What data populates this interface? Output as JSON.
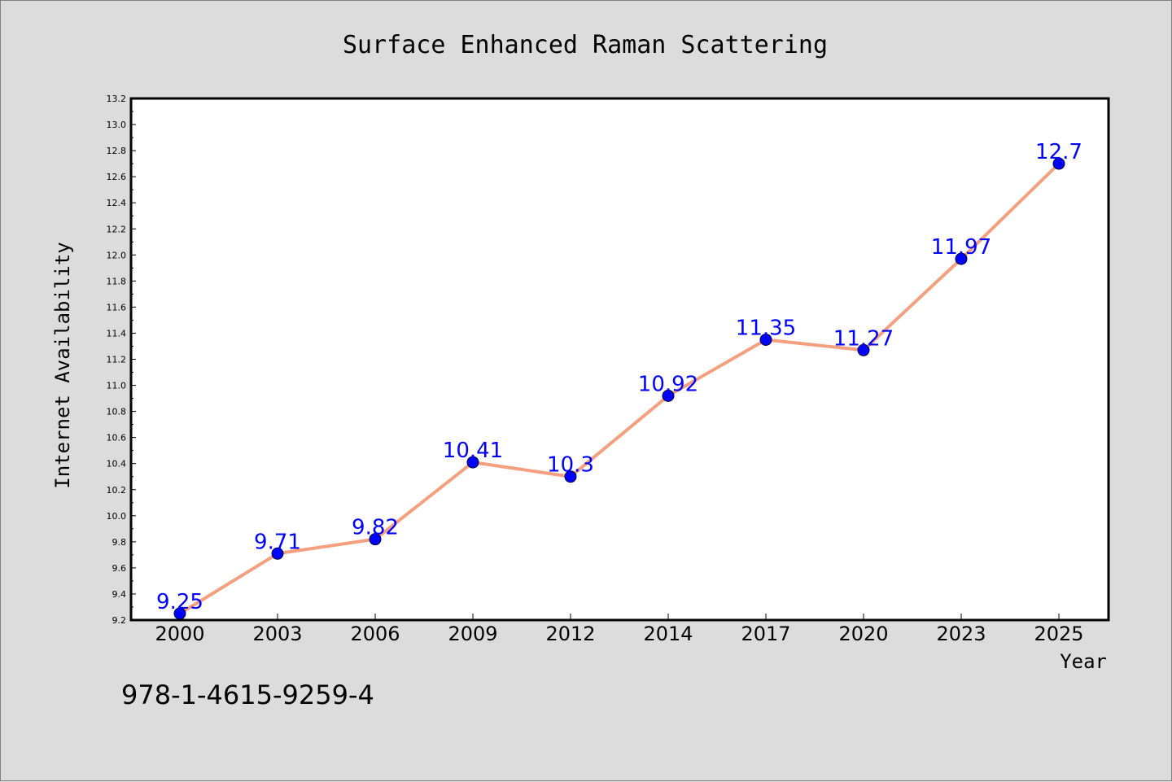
{
  "chart_data": {
    "type": "line",
    "title": "Surface Enhanced Raman Scattering",
    "xlabel": "Year",
    "ylabel": "Internet Availability",
    "categories": [
      "2000",
      "2003",
      "2006",
      "2009",
      "2012",
      "2014",
      "2017",
      "2020",
      "2023",
      "2025"
    ],
    "series": [
      {
        "values": [
          9.25,
          9.71,
          9.82,
          10.41,
          10.3,
          10.92,
          11.35,
          11.27,
          11.97,
          12.7
        ],
        "labels": [
          "9.25",
          "9.71",
          "9.82",
          "10.41",
          "10.3",
          "10.92",
          "11.35",
          "11.27",
          "11.97",
          "12.7"
        ],
        "line_color": "#f4a07e",
        "marker_color": "#0000ff"
      }
    ],
    "ylim": [
      9.2,
      13.2
    ],
    "yticks": [
      "9.2",
      "9.4",
      "9.6",
      "9.8",
      "10.0",
      "10.2",
      "10.4",
      "10.6",
      "10.8",
      "11.0",
      "11.2",
      "11.4",
      "11.6",
      "11.8",
      "12.0",
      "12.2",
      "12.4",
      "12.6",
      "12.8",
      "13.0",
      "13.2"
    ],
    "grid": false,
    "legend": "none",
    "label_color": "#0000ff",
    "plot_background": "#ffffff",
    "figure_background": "#dcdcdc"
  },
  "footer": {
    "isbn": "978-1-4615-9259-4"
  }
}
